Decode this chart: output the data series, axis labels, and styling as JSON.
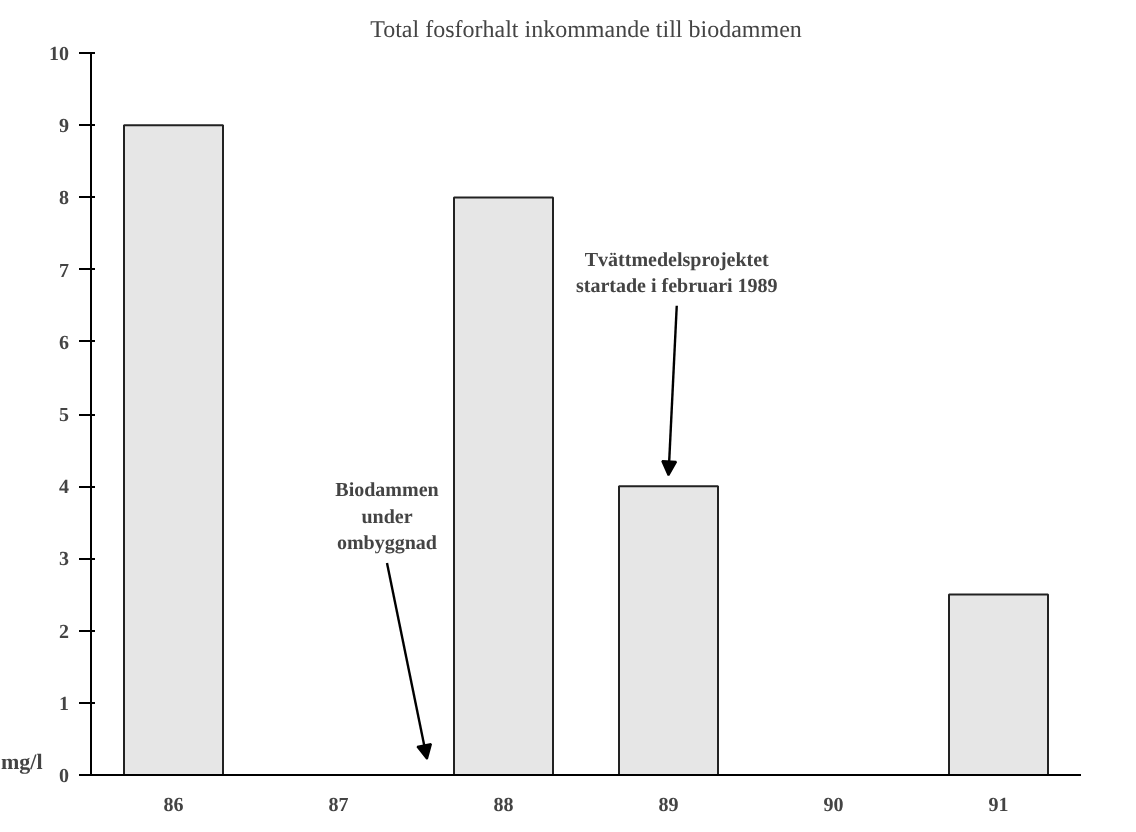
{
  "chart_data": {
    "type": "bar",
    "title": "Total fosforhalt inkommande till biodammen",
    "ylabel": "mg/l",
    "categories": [
      "86",
      "87",
      "88",
      "89",
      "90",
      "91"
    ],
    "values": [
      9,
      null,
      8,
      4,
      null,
      2.5
    ],
    "color": "#e6e6e6",
    "ylim": [
      0,
      10
    ],
    "yticks": [
      0,
      1,
      2,
      3,
      4,
      5,
      6,
      7,
      8,
      9,
      10
    ],
    "grid": false,
    "annotations": [
      "Biodammen\nunder\nombyggnad",
      {
        "text": "Tvättmedelsprojektet\nstartade i februari 1989",
        "x": "89",
        "y": 4
      }
    ]
  }
}
